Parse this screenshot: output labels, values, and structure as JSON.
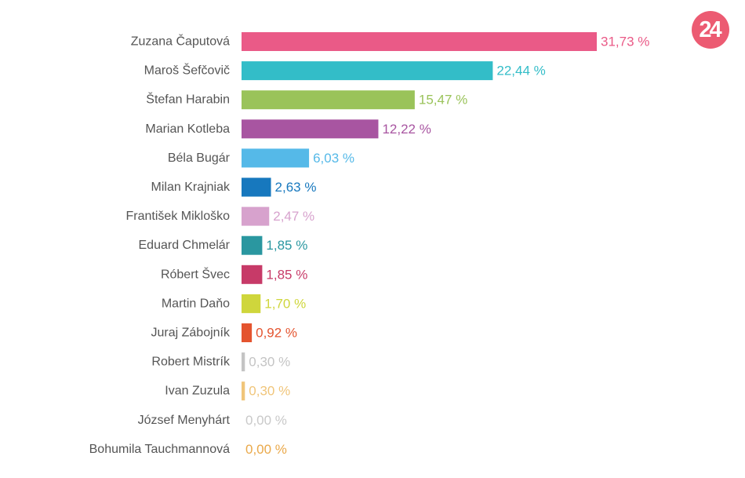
{
  "logo_text": "24",
  "chart_data": {
    "type": "bar",
    "orientation": "horizontal",
    "grid": false,
    "legend": "none",
    "xlim": [
      0,
      31.73
    ],
    "value_suffix": " %",
    "categories": [
      "Zuzana Čaputová",
      "Maroš Šefčovič",
      "Štefan Harabin",
      "Marian Kotleba",
      "Béla Bugár",
      "Milan Krajniak",
      "František Mikloško",
      "Eduard Chmelár",
      "Róbert Švec",
      "Martin Daňo",
      "Juraj Zábojník",
      "Robert Mistrík",
      "Ivan Zuzula",
      "József Menyhárt",
      "Bohumila Tauchmannová"
    ],
    "values": [
      31.73,
      22.44,
      15.47,
      12.22,
      6.03,
      2.63,
      2.47,
      1.85,
      1.85,
      1.7,
      0.92,
      0.3,
      0.3,
      0.0,
      0.0
    ],
    "value_labels": [
      "31,73 %",
      "22,44 %",
      "15,47 %",
      "12,22 %",
      "6,03 %",
      "2,63 %",
      "2,47 %",
      "1,85 %",
      "1,85 %",
      "1,70 %",
      "0,92 %",
      "0,30 %",
      "0,30 %",
      "0,00 %",
      "0,00 %"
    ],
    "colors": [
      "#ea5a87",
      "#33bdc8",
      "#9ac35a",
      "#a855a1",
      "#55b9e8",
      "#1778be",
      "#d7a2cd",
      "#2a97a0",
      "#c73a68",
      "#cfd63c",
      "#e4542f",
      "#c4c4c4",
      "#f0c57a",
      "#c9c9c9",
      "#eaa94a"
    ]
  }
}
